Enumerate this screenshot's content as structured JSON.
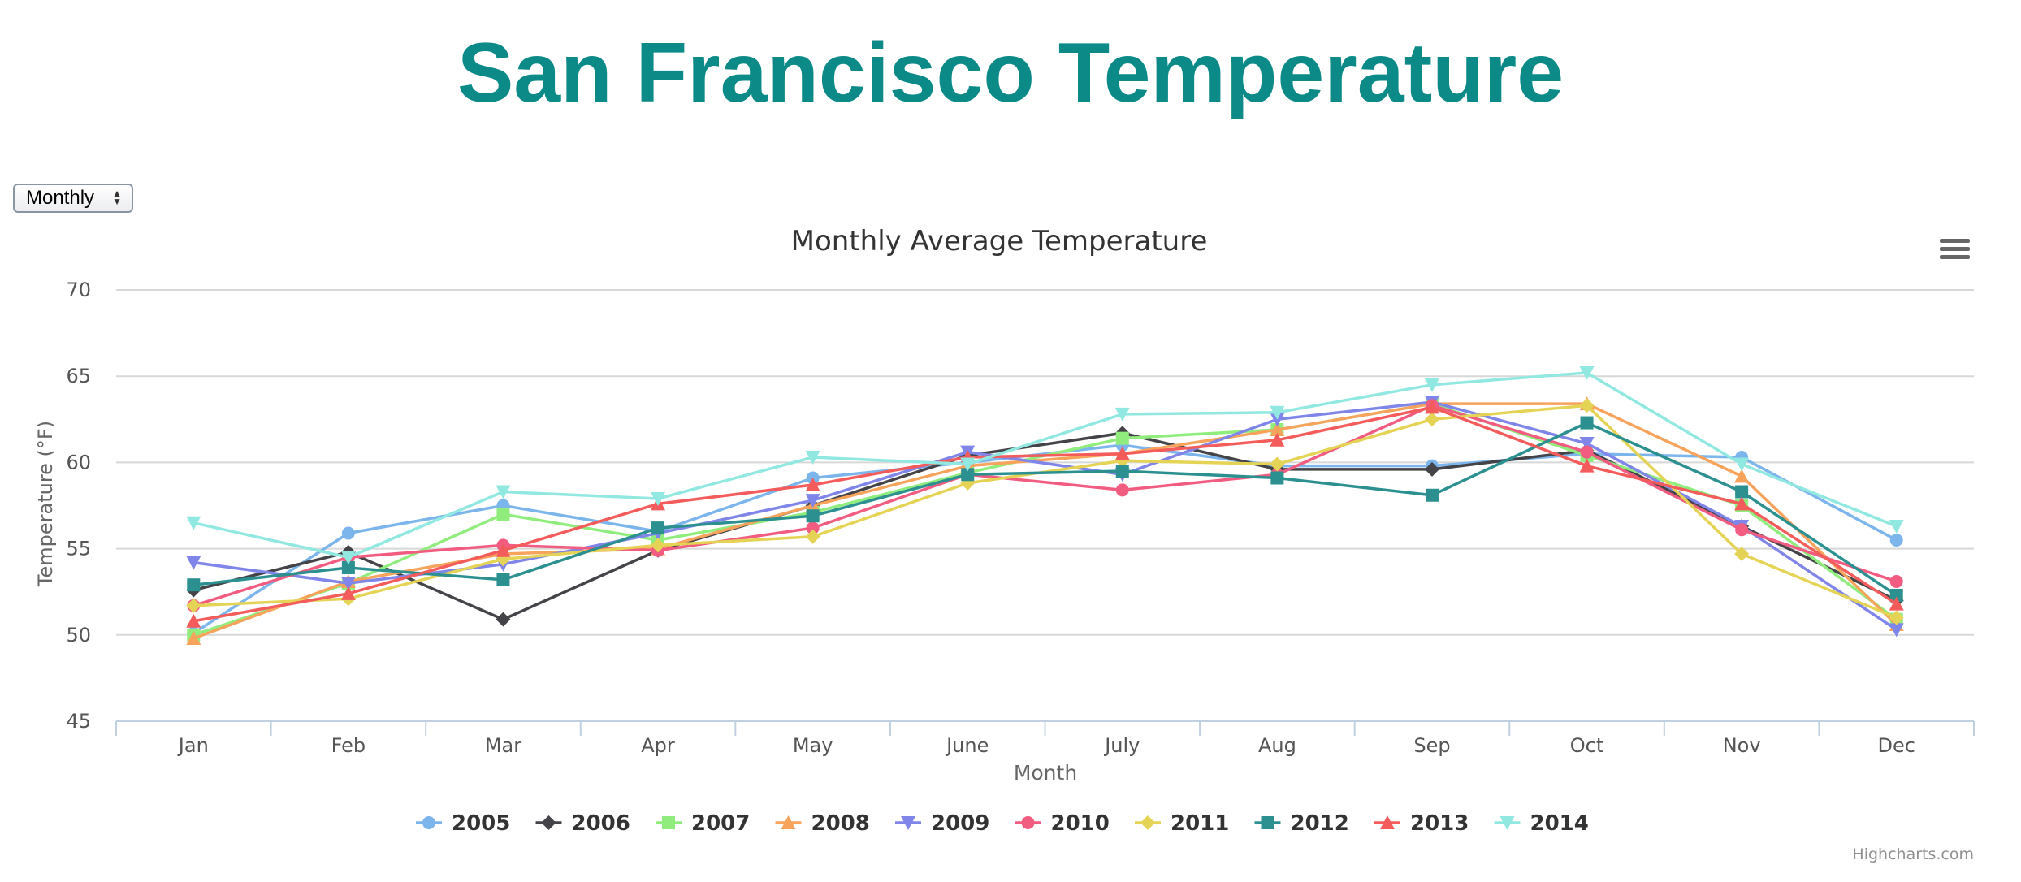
{
  "page": {
    "title": "San Francisco Temperature",
    "title_color": "#0b8a87",
    "period_select": {
      "selected": "Monthly",
      "icon": "up-down-arrows-icon"
    }
  },
  "menu_icon": "hamburger-menu-icon",
  "credits": "Highcharts.com",
  "chart_data": {
    "type": "line",
    "title": "Monthly Average Temperature",
    "xlabel": "Month",
    "ylabel": "Temperature (°F)",
    "categories": [
      "Jan",
      "Feb",
      "Mar",
      "Apr",
      "May",
      "June",
      "July",
      "Aug",
      "Sep",
      "Oct",
      "Nov",
      "Dec"
    ],
    "ylim": [
      45,
      70
    ],
    "yticks": [
      45,
      50,
      55,
      60,
      65,
      70
    ],
    "grid": true,
    "legend_position": "bottom-center",
    "series": [
      {
        "name": "2005",
        "color": "#7cb5ec",
        "marker": "circle",
        "values": [
          50.1,
          55.9,
          57.5,
          56.0,
          59.1,
          60.0,
          61.0,
          59.8,
          59.8,
          60.5,
          60.3,
          55.5
        ]
      },
      {
        "name": "2006",
        "color": "#434348",
        "marker": "diamond",
        "values": [
          52.6,
          54.8,
          50.9,
          54.9,
          57.5,
          60.4,
          61.7,
          59.6,
          59.6,
          60.7,
          56.3,
          52.0
        ]
      },
      {
        "name": "2007",
        "color": "#90ed7d",
        "marker": "square",
        "values": [
          50.0,
          53.0,
          57.0,
          55.5,
          57.1,
          59.4,
          61.4,
          61.9,
          63.4,
          60.4,
          57.5,
          50.9
        ]
      },
      {
        "name": "2008",
        "color": "#f7a35c",
        "marker": "triangle",
        "values": [
          49.8,
          53.1,
          54.7,
          55.0,
          57.5,
          59.8,
          60.5,
          61.9,
          63.4,
          63.4,
          59.2,
          50.6
        ]
      },
      {
        "name": "2009",
        "color": "#8085e9",
        "marker": "triangle-down",
        "values": [
          54.2,
          53.0,
          54.1,
          55.9,
          57.8,
          60.6,
          59.3,
          62.5,
          63.5,
          61.1,
          56.3,
          50.3
        ]
      },
      {
        "name": "2010",
        "color": "#f15c80",
        "marker": "circle",
        "values": [
          51.7,
          54.5,
          55.2,
          54.9,
          56.2,
          59.3,
          58.4,
          59.3,
          63.3,
          60.6,
          56.1,
          53.1
        ]
      },
      {
        "name": "2011",
        "color": "#e4d354",
        "marker": "diamond",
        "values": [
          51.7,
          52.1,
          54.4,
          55.2,
          55.7,
          58.8,
          60.1,
          59.9,
          62.5,
          63.3,
          54.7,
          51.0
        ]
      },
      {
        "name": "2012",
        "color": "#2b908f",
        "marker": "square",
        "values": [
          52.9,
          53.9,
          53.2,
          56.2,
          56.9,
          59.3,
          59.5,
          59.1,
          58.1,
          62.3,
          58.3,
          52.3
        ]
      },
      {
        "name": "2013",
        "color": "#f45b5b",
        "marker": "triangle",
        "values": [
          50.8,
          52.4,
          54.9,
          57.6,
          58.7,
          60.3,
          60.5,
          61.3,
          63.2,
          59.8,
          57.6,
          51.8
        ]
      },
      {
        "name": "2014",
        "color": "#91e8e1",
        "marker": "triangle-down",
        "values": [
          56.5,
          54.5,
          58.3,
          57.9,
          60.3,
          59.9,
          62.8,
          62.9,
          64.5,
          65.2,
          59.9,
          56.3
        ]
      }
    ]
  }
}
